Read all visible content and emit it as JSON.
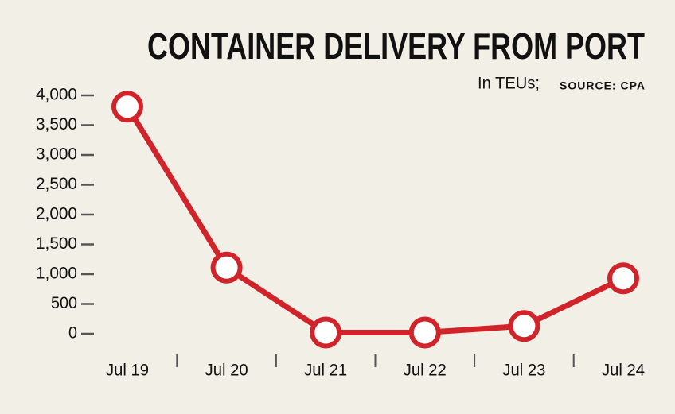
{
  "chart_data": {
    "type": "line",
    "title": "CONTAINER DELIVERY FROM PORT",
    "subtitle": "In TEUs;",
    "source": "SOURCE: CPA",
    "categories": [
      "Jul 19",
      "Jul 20",
      "Jul 21",
      "Jul 22",
      "Jul 23",
      "Jul 24"
    ],
    "values": [
      3810,
      1110,
      20,
      20,
      130,
      930
    ],
    "color": "#d0232a",
    "ylim": [
      0,
      4000
    ],
    "yticks": [
      0,
      500,
      {
        "value": 1000,
        "label": "1,000"
      },
      {
        "value": 1500,
        "label": "1,500"
      },
      {
        "value": 2000,
        "label": "2,000"
      },
      {
        "value": 2500,
        "label": "2,500"
      },
      {
        "value": 3000,
        "label": "3,000"
      },
      {
        "value": 3500,
        "label": "3,500"
      },
      {
        "value": 4000,
        "label": "4,000"
      }
    ],
    "grid": false
  }
}
